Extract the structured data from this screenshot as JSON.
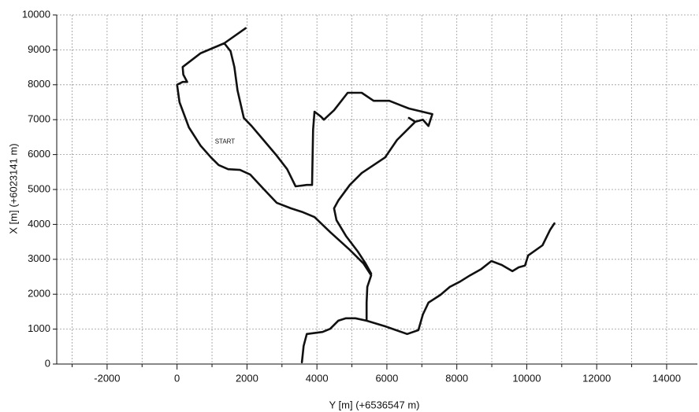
{
  "chart_data": {
    "type": "line",
    "x_label": "Y [m]   (+6536547 m)",
    "y_label": "X [m]   (+6023141 m)",
    "annotation": {
      "text": "START",
      "x": 1370,
      "y": 6370
    },
    "xlim": [
      -3440,
      14880
    ],
    "ylim": [
      0,
      10000
    ],
    "xticks": [
      -2000,
      0,
      2000,
      4000,
      6000,
      8000,
      10000,
      12000,
      14000
    ],
    "xminorticks": [
      -3000,
      -1000,
      1000,
      3000,
      5000,
      7000,
      9000,
      11000,
      13000
    ],
    "yticks": [
      0,
      1000,
      2000,
      3000,
      4000,
      5000,
      6000,
      7000,
      8000,
      9000,
      10000
    ],
    "grid": true,
    "color": "#111111",
    "x": [
      10790,
      10670,
      10450,
      10040,
      9950,
      9770,
      9590,
      9280,
      8990,
      8700,
      8380,
      8090,
      7800,
      7530,
      7190,
      7030,
      6900,
      6580,
      5950,
      5420,
      5100,
      4830,
      4610,
      4380,
      4160,
      3710,
      3620,
      3570,
      null,
      5420,
      5420,
      5440,
      5550,
      5330,
      4940,
      4380,
      3930,
      3600,
      3260,
      2850,
      2470,
      2090,
      1800,
      1460,
      1190,
      970,
      670,
      340,
      70,
      0,
      160,
      290,
      180,
      160,
      670,
      1350,
      1960,
      null,
      1350,
      1530,
      1640,
      1730,
      1910,
      2130,
      2470,
      2850,
      3150,
      3390,
      3710,
      3860,
      3890,
      3930,
      4110,
      4200,
      4490,
      4880,
      5280,
      5620,
      6070,
      6630,
      7300,
      7190,
      7030,
      6810,
      6630,
      6810,
      6290,
      5950,
      5280,
      4940,
      4610,
      4490,
      4560,
      4830,
      5170,
      5390,
      5550
    ],
    "values": [
      4030,
      3850,
      3400,
      3110,
      2820,
      2770,
      2660,
      2840,
      2950,
      2720,
      2540,
      2360,
      2210,
      1980,
      1760,
      1420,
      970,
      860,
      1080,
      1240,
      1310,
      1310,
      1240,
      1010,
      920,
      860,
      520,
      50,
      null,
      1240,
      1760,
      2210,
      2540,
      2880,
      3270,
      3780,
      4210,
      4350,
      4460,
      4620,
      5020,
      5430,
      5560,
      5580,
      5700,
      5920,
      6260,
      6780,
      7500,
      8000,
      8080,
      8080,
      8290,
      8510,
      8900,
      9190,
      9620,
      null,
      9190,
      8960,
      8510,
      7840,
      7050,
      6820,
      6420,
      5970,
      5580,
      5090,
      5130,
      5130,
      6710,
      7230,
      7090,
      7000,
      7270,
      7770,
      7770,
      7540,
      7540,
      7320,
      7160,
      6820,
      7000,
      6940,
      7050,
      6940,
      6420,
      5920,
      5470,
      5130,
      4680,
      4460,
      4120,
      3670,
      3220,
      2880,
      2590
    ]
  }
}
